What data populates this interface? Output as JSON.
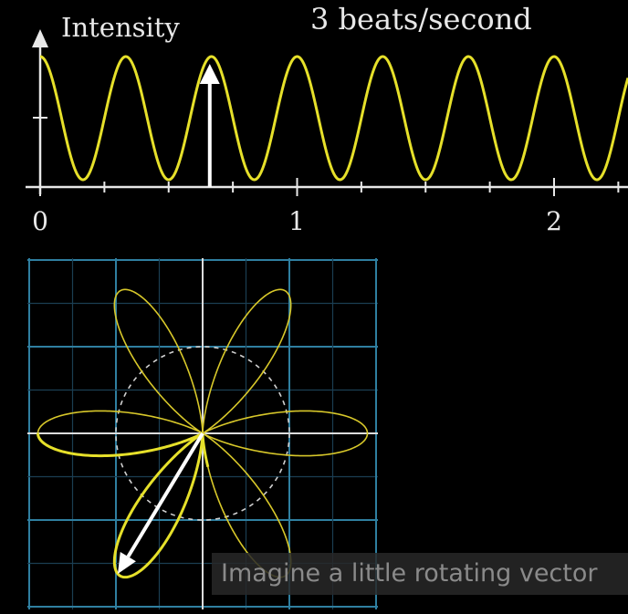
{
  "top_plot": {
    "ylabel": "Intensity",
    "title": "3 beats/second",
    "x_ticks": [
      "0",
      "1",
      "2"
    ],
    "x_range": [
      0,
      2.3
    ],
    "frequency_hz": 3,
    "marker_time": 0.66,
    "colors": {
      "wave": "#e6e02a",
      "axis": "#e8e8e8",
      "background": "#000000"
    }
  },
  "polar_plot": {
    "winding_cycles_per_second": 0.5,
    "petals": 6,
    "colors": {
      "curve": "#d8c82a",
      "grid_major": "#2f7fa0",
      "grid_minor": "#1b3e52",
      "circle": "#d0d0d0",
      "vector": "#ffffff"
    }
  },
  "caption": {
    "text": "Imagine a little rotating vector"
  }
}
